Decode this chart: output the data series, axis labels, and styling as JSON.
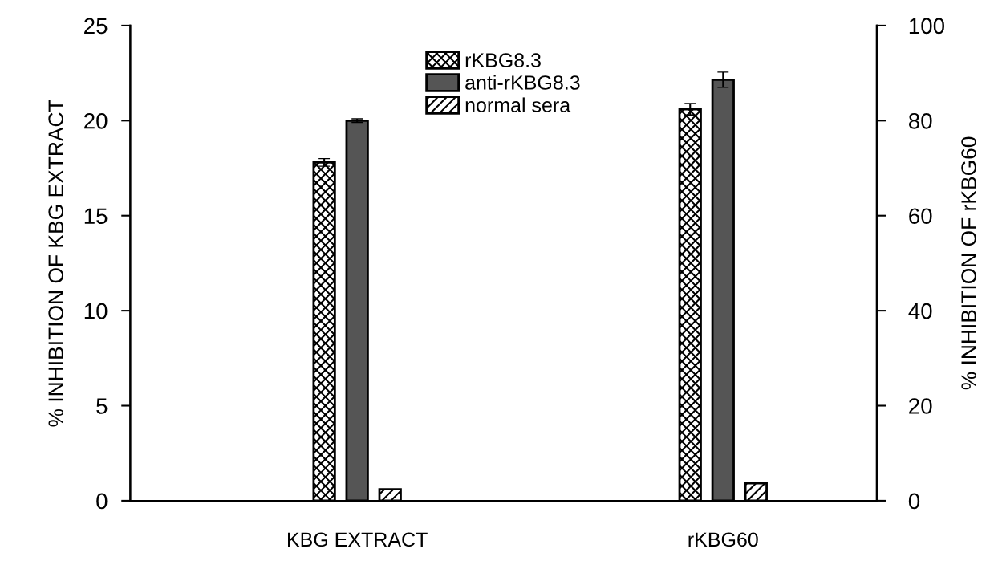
{
  "chart_data": {
    "type": "bar",
    "categories": [
      "KBG EXTRACT",
      "rKBG60"
    ],
    "ylabel": "% INHIBITION OF KBG EXTRACT",
    "y2label": "% INHIBITION OF rKBG60",
    "ylim": [
      0,
      25
    ],
    "yticks": [
      0,
      5,
      10,
      15,
      20,
      25
    ],
    "y2lim": [
      0,
      100
    ],
    "y2ticks": [
      0,
      20,
      40,
      60,
      80,
      100
    ],
    "legend": "top",
    "grid": false,
    "series": [
      {
        "name": "rKBG8.3",
        "color": "#000000",
        "values": [
          17.8,
          null
        ],
        "errors": [
          0.2,
          null
        ]
      },
      {
        "name": "anti-rKBG8.3",
        "color": "#555555",
        "values": [
          20.0,
          null
        ],
        "errors": [
          0.1,
          null
        ]
      },
      {
        "name": "normal sera",
        "color": "#000000",
        "values": [
          0.6,
          null
        ],
        "errors": [
          null,
          null
        ]
      },
      {
        "color": "#000000",
        "axis": "y2",
        "values": [
          null,
          82.4
        ],
        "errors": [
          null,
          1.2
        ]
      },
      {
        "color": "#555555",
        "axis": "y2",
        "values": [
          null,
          88.6
        ],
        "errors": [
          null,
          1.6
        ]
      },
      {
        "color": "#000000",
        "axis": "y2",
        "values": [
          null,
          3.7
        ],
        "errors": [
          null,
          null
        ]
      }
    ]
  }
}
